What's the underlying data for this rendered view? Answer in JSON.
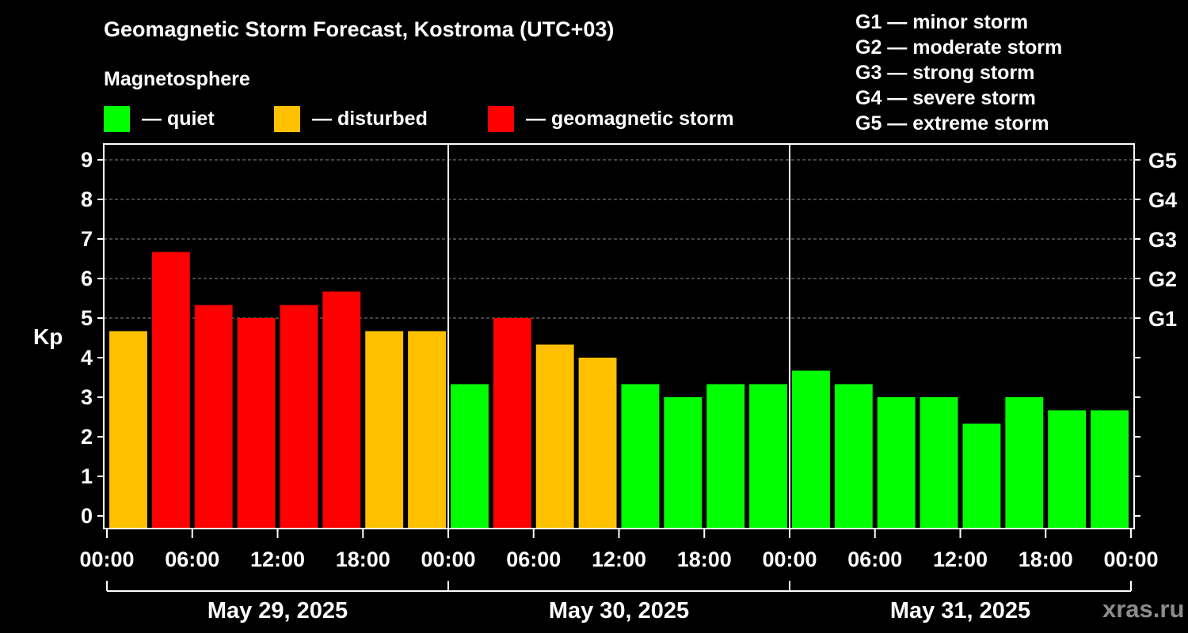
{
  "title": "Geomagnetic Storm Forecast, Kostroma (UTC+03)",
  "magnetosphere": {
    "title": "Magnetosphere",
    "items": [
      {
        "label": "— quiet",
        "color": "#00ff00"
      },
      {
        "label": "— disturbed",
        "color": "#ffc000"
      },
      {
        "label": "— geomagnetic storm",
        "color": "#ff0000"
      }
    ]
  },
  "g_scale_legend": [
    "G1 — minor storm",
    "G2 — moderate storm",
    "G3 — strong storm",
    "G4 — severe storm",
    "G5 — extreme storm"
  ],
  "watermark": "xras.ru",
  "chart_data": {
    "type": "bar",
    "title": "Geomagnetic Storm Forecast, Kostroma (UTC+03)",
    "ylabel": "Kp",
    "ylim": [
      0,
      9
    ],
    "yticks": [
      "0",
      "1",
      "2",
      "3",
      "4",
      "5",
      "6",
      "7",
      "8",
      "9"
    ],
    "right_axis_labels": [
      {
        "kp": 5,
        "label": "G1"
      },
      {
        "kp": 6,
        "label": "G2"
      },
      {
        "kp": 7,
        "label": "G3"
      },
      {
        "kp": 8,
        "label": "G4"
      },
      {
        "kp": 9,
        "label": "G5"
      }
    ],
    "xticks": [
      "00:00",
      "06:00",
      "12:00",
      "18:00",
      "00:00",
      "06:00",
      "12:00",
      "18:00",
      "00:00",
      "06:00",
      "12:00",
      "18:00",
      "00:00"
    ],
    "days": [
      "May 29, 2025",
      "May 30, 2025",
      "May 31, 2025"
    ],
    "interval_hours": 3,
    "values": [
      4.67,
      6.67,
      5.33,
      5.0,
      5.33,
      5.67,
      4.67,
      4.67,
      3.33,
      5.0,
      4.33,
      4.0,
      3.33,
      3.0,
      3.33,
      3.33,
      3.67,
      3.33,
      3.0,
      3.0,
      2.33,
      3.0,
      2.67,
      2.67
    ],
    "thresholds": {
      "disturbed_min": 4.0,
      "storm_min": 5.0
    },
    "colors": {
      "quiet": "#00ff00",
      "disturbed": "#ffc000",
      "storm": "#ff0000"
    }
  }
}
